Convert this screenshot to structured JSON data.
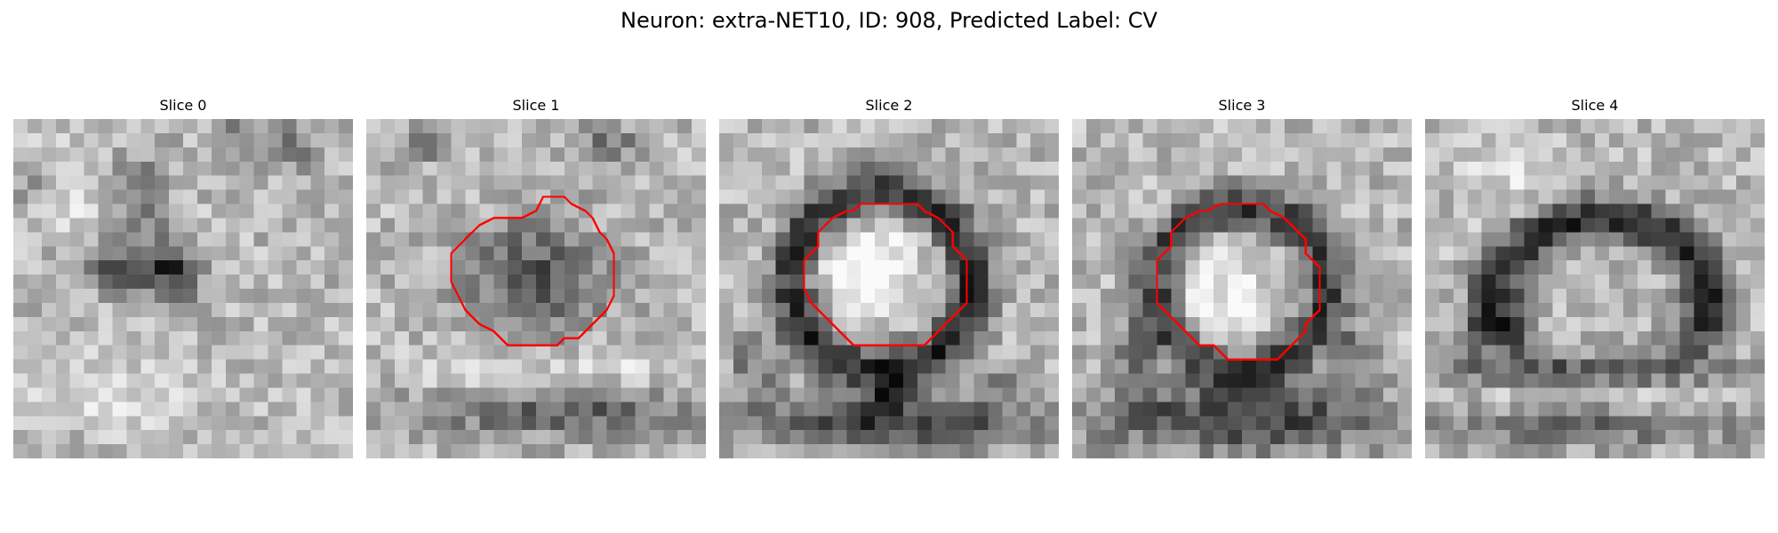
{
  "figure": {
    "title": "Neuron: extra-NET10, ID: 908, Predicted Label: CV",
    "contour_color": "#ff0000"
  },
  "slices": [
    {
      "title": "Slice 0",
      "has_contour": false
    },
    {
      "title": "Slice 1",
      "has_contour": true
    },
    {
      "title": "Slice 2",
      "has_contour": true
    },
    {
      "title": "Slice 3",
      "has_contour": true
    },
    {
      "title": "Slice 4",
      "has_contour": false
    }
  ]
}
